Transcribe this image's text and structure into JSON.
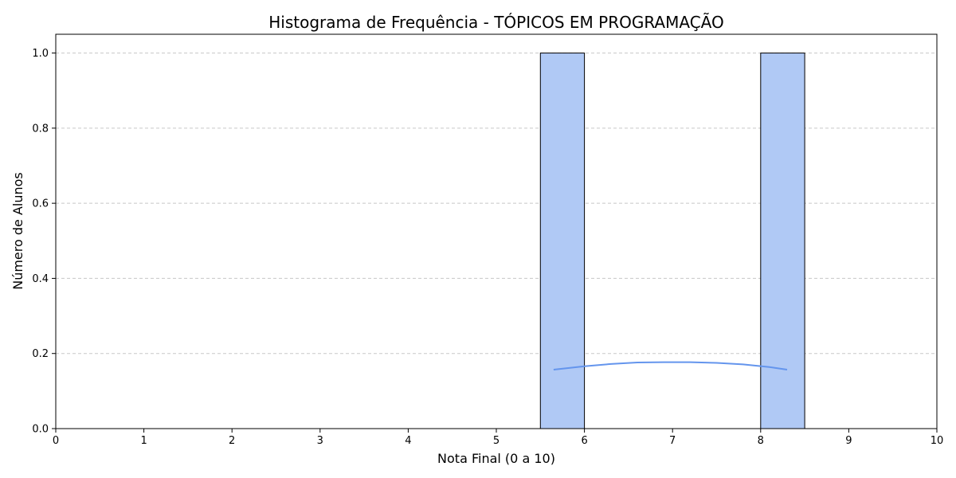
{
  "chart_data": {
    "type": "bar",
    "title": "Histograma de Frequência - TÓPICOS EM PROGRAMAÇÃO",
    "xlabel": "Nota Final (0 a 10)",
    "ylabel": "Número de Alunos",
    "xlim": [
      0,
      10
    ],
    "ylim": [
      0,
      1.05
    ],
    "xticks": [
      "0",
      "1",
      "2",
      "3",
      "4",
      "5",
      "6",
      "7",
      "8",
      "9",
      "10"
    ],
    "yticks": [
      "0.0",
      "0.2",
      "0.4",
      "0.6",
      "0.8",
      "1.0"
    ],
    "grid": "y-dashed",
    "bins": [
      {
        "start": 5.5,
        "end": 6.0,
        "count": 1
      },
      {
        "start": 8.0,
        "end": 8.5,
        "count": 1
      }
    ],
    "kde": {
      "x": [
        5.65,
        6.0,
        6.3,
        6.6,
        6.9,
        7.2,
        7.5,
        7.8,
        8.1,
        8.3
      ],
      "y": [
        0.157,
        0.166,
        0.172,
        0.176,
        0.177,
        0.177,
        0.175,
        0.171,
        0.164,
        0.157
      ]
    },
    "colors": {
      "bar_fill": "#b0c9f5",
      "bar_edge": "#000000",
      "kde_line": "#6495ed",
      "grid": "#c8c8c8"
    }
  }
}
